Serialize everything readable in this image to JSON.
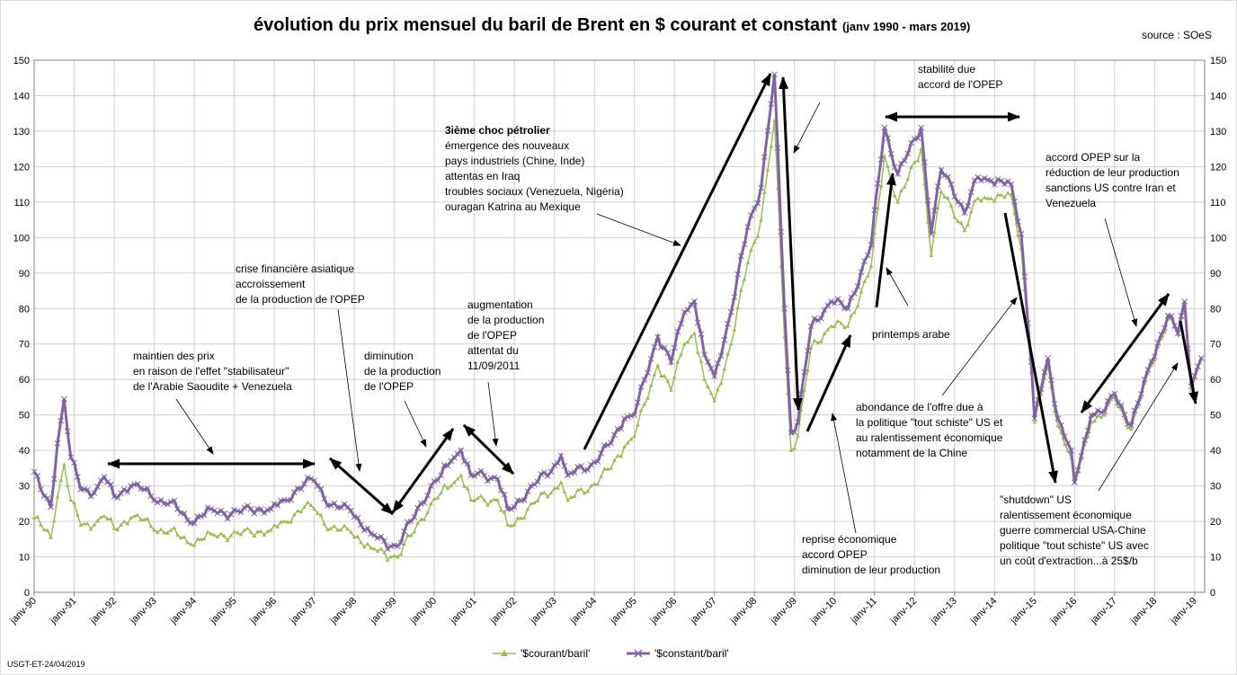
{
  "chart_data": {
    "type": "line",
    "title": "évolution du prix mensuel du baril de Brent en $ courant et constant",
    "title_suffix": "(janv 1990 - mars 2019)",
    "source": "source : SOeS",
    "footer_note": "USGT-ET-24/04/2019",
    "ylim": [
      0,
      150
    ],
    "ytick_step": 10,
    "x_start": "1990-01",
    "x_end": "2019-03",
    "grid": true,
    "legend_position": "bottom",
    "colors": {
      "courant": "#9bbb59",
      "constant": "#8064a2"
    },
    "x_tick_labels": [
      "janv-90",
      "janv-91",
      "janv-92",
      "janv-93",
      "janv-94",
      "janv-95",
      "janv-96",
      "janv-97",
      "janv-98",
      "janv-99",
      "janv-00",
      "janv-01",
      "janv-02",
      "janv-03",
      "janv-04",
      "janv-05",
      "janv-06",
      "janv-07",
      "janv-08",
      "janv-09",
      "janv-10",
      "janv-11",
      "janv-12",
      "janv-13",
      "janv-14",
      "janv-15",
      "janv-16",
      "janv-17",
      "janv-18",
      "janv-19"
    ],
    "series": [
      {
        "name": "'$courant/baril'",
        "marker": "triangle",
        "anchors": [
          [
            "1990-01",
            21
          ],
          [
            "1990-03",
            19
          ],
          [
            "1990-06",
            15.5
          ],
          [
            "1990-08",
            27
          ],
          [
            "1990-10",
            36
          ],
          [
            "1990-12",
            26
          ],
          [
            "1991-03",
            19
          ],
          [
            "1991-07",
            19
          ],
          [
            "1991-10",
            21.5
          ],
          [
            "1992-01",
            18
          ],
          [
            "1992-06",
            21
          ],
          [
            "1992-10",
            20.5
          ],
          [
            "1993-01",
            17.5
          ],
          [
            "1993-06",
            17.5
          ],
          [
            "1993-12",
            13.5
          ],
          [
            "1994-06",
            16.5
          ],
          [
            "1994-12",
            16
          ],
          [
            "1995-06",
            17
          ],
          [
            "1995-12",
            17.5
          ],
          [
            "1996-04",
            20
          ],
          [
            "1996-10",
            24
          ],
          [
            "1997-01",
            23.5
          ],
          [
            "1997-06",
            18
          ],
          [
            "1997-12",
            17
          ],
          [
            "1998-06",
            12.5
          ],
          [
            "1998-12",
            10
          ],
          [
            "1999-02",
            10
          ],
          [
            "1999-06",
            16
          ],
          [
            "1999-12",
            25
          ],
          [
            "2000-03",
            28
          ],
          [
            "2000-06",
            30
          ],
          [
            "2000-09",
            33
          ],
          [
            "2000-12",
            26
          ],
          [
            "2001-04",
            26
          ],
          [
            "2001-08",
            26
          ],
          [
            "2001-11",
            19
          ],
          [
            "2002-01",
            19
          ],
          [
            "2002-06",
            25
          ],
          [
            "2002-12",
            28
          ],
          [
            "2003-03",
            31
          ],
          [
            "2003-05",
            26
          ],
          [
            "2003-12",
            30
          ],
          [
            "2004-06",
            35
          ],
          [
            "2004-10",
            41
          ],
          [
            "2005-01",
            44
          ],
          [
            "2005-08",
            64
          ],
          [
            "2005-12",
            57
          ],
          [
            "2006-04",
            70
          ],
          [
            "2006-07",
            73
          ],
          [
            "2006-10",
            60
          ],
          [
            "2007-01",
            54
          ],
          [
            "2007-06",
            70
          ],
          [
            "2007-11",
            93
          ],
          [
            "2008-03",
            105
          ],
          [
            "2008-07",
            133
          ],
          [
            "2008-10",
            72
          ],
          [
            "2008-12",
            40
          ],
          [
            "2009-02",
            44
          ],
          [
            "2009-06",
            69
          ],
          [
            "2009-12",
            75
          ],
          [
            "2010-05",
            75
          ],
          [
            "2010-12",
            92
          ],
          [
            "2011-04",
            123
          ],
          [
            "2011-08",
            110
          ],
          [
            "2012-03",
            125
          ],
          [
            "2012-06",
            95
          ],
          [
            "2012-09",
            113
          ],
          [
            "2012-12",
            109
          ],
          [
            "2013-04",
            102
          ],
          [
            "2013-08",
            111
          ],
          [
            "2013-12",
            111
          ],
          [
            "2014-06",
            112
          ],
          [
            "2014-09",
            97
          ],
          [
            "2014-12",
            62
          ],
          [
            "2015-01",
            48
          ],
          [
            "2015-05",
            64
          ],
          [
            "2015-08",
            47
          ],
          [
            "2015-12",
            38
          ],
          [
            "2016-01",
            31
          ],
          [
            "2016-06",
            48
          ],
          [
            "2016-10",
            50
          ],
          [
            "2017-01",
            55
          ],
          [
            "2017-06",
            46
          ],
          [
            "2017-12",
            64
          ],
          [
            "2018-05",
            77
          ],
          [
            "2018-08",
            73
          ],
          [
            "2018-10",
            81
          ],
          [
            "2018-12",
            57
          ],
          [
            "2019-03",
            66
          ]
        ]
      },
      {
        "name": "'$constant/baril'",
        "marker": "x",
        "anchors": [
          [
            "1990-01",
            34
          ],
          [
            "1990-03",
            29
          ],
          [
            "1990-06",
            24
          ],
          [
            "1990-08",
            42
          ],
          [
            "1990-10",
            54.5
          ],
          [
            "1990-12",
            38
          ],
          [
            "1991-03",
            29
          ],
          [
            "1991-07",
            28
          ],
          [
            "1991-10",
            32.5
          ],
          [
            "1992-01",
            27
          ],
          [
            "1992-06",
            30
          ],
          [
            "1992-10",
            29
          ],
          [
            "1993-01",
            26
          ],
          [
            "1993-06",
            25.5
          ],
          [
            "1993-12",
            19.5
          ],
          [
            "1994-06",
            23.5
          ],
          [
            "1994-12",
            22
          ],
          [
            "1995-06",
            23.5
          ],
          [
            "1995-12",
            23.5
          ],
          [
            "1996-04",
            26
          ],
          [
            "1996-10",
            30.5
          ],
          [
            "1997-01",
            31.5
          ],
          [
            "1997-06",
            24.5
          ],
          [
            "1997-12",
            23
          ],
          [
            "1998-06",
            16.5
          ],
          [
            "1998-12",
            13
          ],
          [
            "1999-02",
            13
          ],
          [
            "1999-06",
            20
          ],
          [
            "1999-12",
            30
          ],
          [
            "2000-03",
            33
          ],
          [
            "2000-06",
            37
          ],
          [
            "2000-09",
            40
          ],
          [
            "2000-12",
            33
          ],
          [
            "2001-04",
            33
          ],
          [
            "2001-08",
            32
          ],
          [
            "2001-11",
            23.5
          ],
          [
            "2002-01",
            24
          ],
          [
            "2002-06",
            30
          ],
          [
            "2002-12",
            34
          ],
          [
            "2003-03",
            38.5
          ],
          [
            "2003-05",
            33
          ],
          [
            "2003-12",
            36
          ],
          [
            "2004-06",
            42
          ],
          [
            "2004-10",
            49
          ],
          [
            "2005-01",
            50
          ],
          [
            "2005-08",
            72
          ],
          [
            "2005-12",
            65
          ],
          [
            "2006-04",
            79
          ],
          [
            "2006-07",
            82
          ],
          [
            "2006-10",
            67
          ],
          [
            "2007-01",
            61
          ],
          [
            "2007-06",
            79
          ],
          [
            "2007-11",
            103
          ],
          [
            "2008-03",
            114
          ],
          [
            "2008-07",
            146
          ],
          [
            "2008-10",
            80
          ],
          [
            "2008-12",
            45
          ],
          [
            "2009-02",
            48
          ],
          [
            "2009-06",
            75
          ],
          [
            "2009-12",
            82
          ],
          [
            "2010-05",
            80
          ],
          [
            "2010-12",
            98
          ],
          [
            "2011-04",
            131
          ],
          [
            "2011-08",
            118
          ],
          [
            "2012-03",
            131
          ],
          [
            "2012-06",
            101
          ],
          [
            "2012-09",
            119
          ],
          [
            "2012-12",
            115
          ],
          [
            "2013-04",
            107
          ],
          [
            "2013-08",
            117
          ],
          [
            "2013-12",
            116
          ],
          [
            "2014-06",
            115
          ],
          [
            "2014-09",
            101
          ],
          [
            "2014-12",
            65
          ],
          [
            "2015-01",
            49
          ],
          [
            "2015-05",
            66
          ],
          [
            "2015-08",
            49
          ],
          [
            "2015-12",
            40
          ],
          [
            "2016-01",
            31
          ],
          [
            "2016-06",
            50
          ],
          [
            "2016-10",
            51
          ],
          [
            "2017-01",
            56
          ],
          [
            "2017-06",
            47
          ],
          [
            "2017-12",
            65
          ],
          [
            "2018-05",
            78
          ],
          [
            "2018-08",
            73
          ],
          [
            "2018-10",
            82
          ],
          [
            "2018-12",
            58
          ],
          [
            "2019-03",
            66
          ]
        ]
      }
    ],
    "annotations": [
      {
        "id": "maintien",
        "lines": [
          "maintien des prix",
          "en raison de l'effet \"stabilisateur\"",
          "de l'Arabie Saoudite + Venezuela"
        ]
      },
      {
        "id": "crise",
        "lines": [
          "crise financière asiatique",
          "accroissement",
          "de la production de l'OPEP"
        ]
      },
      {
        "id": "diminution99",
        "lines": [
          "diminution",
          "de la production",
          "de l'OPEP"
        ]
      },
      {
        "id": "augmentation",
        "lines": [
          "augmentation",
          "de la production",
          "de l'OPEP",
          "attentat du",
          "11/09/2011"
        ]
      },
      {
        "id": "choc",
        "lines": [
          "3ième choc pétrolier",
          "émergence des nouveaux",
          "pays industriels (Chine, Inde)",
          "attentas en Iraq",
          "troubles  sociaux (Venezuela, Nigéria)",
          "ouragan Katrina au Mexique"
        ]
      },
      {
        "id": "stabilite",
        "lines": [
          "stabilité due",
          "accord de l'OPEP"
        ]
      },
      {
        "id": "accord_opep",
        "lines": [
          "accord OPEP sur la",
          "réduction  de leur production",
          "sanctions US contre Iran et",
          "Venezuela"
        ]
      },
      {
        "id": "printemps",
        "lines": [
          "printemps arabe"
        ]
      },
      {
        "id": "abondance",
        "lines": [
          "abondance de l'offre due à",
          "la politique \"tout schiste\" US et",
          "au ralentissement économique",
          "notamment de la Chine"
        ]
      },
      {
        "id": "reprise",
        "lines": [
          "reprise économique",
          "accord OPEP",
          "diminution de leur production"
        ]
      },
      {
        "id": "shutdown",
        "lines": [
          "\"shutdown\" US",
          "ralentissement économique",
          "guerre commercial USA-Chine",
          " politique \"tout schiste\" US avec",
          "un coût d'extraction...à 25$/b"
        ]
      }
    ]
  }
}
